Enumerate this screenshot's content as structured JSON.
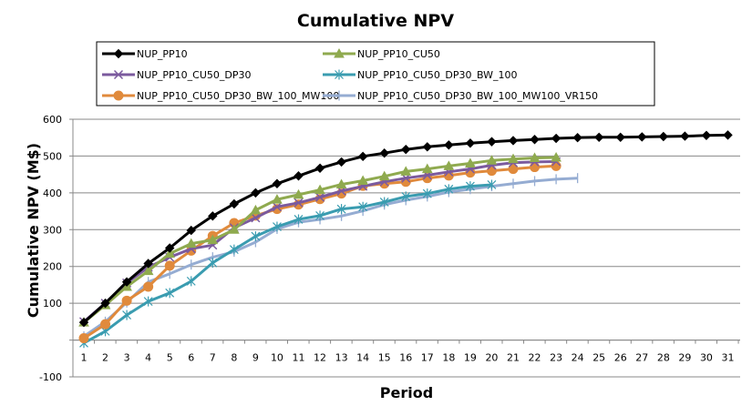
{
  "chart_data": {
    "type": "line",
    "title": "Cumulative NPV",
    "xlabel": "Period",
    "ylabel": "Cumulative NPV (M$)",
    "ylim": [
      -100,
      600
    ],
    "yticks": [
      -100,
      0,
      100,
      200,
      300,
      400,
      500,
      600
    ],
    "ytick_labels": [
      "-100",
      "",
      "100",
      "200",
      "300",
      "400",
      "500",
      "600"
    ],
    "x": [
      1,
      2,
      3,
      4,
      5,
      6,
      7,
      8,
      9,
      10,
      11,
      12,
      13,
      14,
      15,
      16,
      17,
      18,
      19,
      20,
      21,
      22,
      23,
      24,
      25,
      26,
      27,
      28,
      29,
      30,
      31
    ],
    "xtick_labels": [
      "1",
      "2",
      "3",
      "4",
      "5",
      "6",
      "7",
      "8",
      "9",
      "10",
      "11",
      "12",
      "13",
      "14",
      "15",
      "16",
      "17",
      "18",
      "19",
      "20",
      "21",
      "22",
      "23",
      "24",
      "25",
      "26",
      "27",
      "28",
      "29",
      "30",
      "31"
    ],
    "grid": true,
    "legend_position": "top",
    "series": [
      {
        "name": "NUP_PP10",
        "color": "#000000",
        "marker": "diamond",
        "values": [
          48,
          100,
          158,
          208,
          250,
          298,
          337,
          370,
          400,
          425,
          446,
          467,
          484,
          499,
          508,
          518,
          525,
          530,
          535,
          539,
          542,
          545,
          548,
          550,
          551,
          551,
          552,
          553,
          554,
          556,
          557
        ]
      },
      {
        "name": "NUP_PP10_CU50",
        "color": "#8faa4f",
        "marker": "triangle",
        "values": [
          48,
          95,
          145,
          188,
          235,
          262,
          272,
          300,
          353,
          382,
          395,
          408,
          423,
          433,
          445,
          458,
          465,
          473,
          480,
          488,
          492,
          495,
          496
        ]
      },
      {
        "name": "NUP_PP10_CU50_DP30",
        "color": "#7b5a9e",
        "marker": "x",
        "values": [
          50,
          100,
          155,
          198,
          225,
          248,
          258,
          305,
          332,
          362,
          373,
          388,
          405,
          418,
          430,
          440,
          448,
          457,
          465,
          475,
          482,
          484,
          485
        ]
      },
      {
        "name": "NUP_PP10_CU50_DP30_BW_100",
        "color": "#3a9cb0",
        "marker": "star",
        "values": [
          -8,
          24,
          68,
          105,
          128,
          160,
          210,
          246,
          282,
          308,
          328,
          338,
          356,
          362,
          375,
          390,
          398,
          410,
          418,
          422
        ]
      },
      {
        "name": "NUP_PP10_CU50_DP30_BW_100_MW100",
        "color": "#e08a3c",
        "marker": "circle",
        "values": [
          5,
          43,
          107,
          145,
          202,
          243,
          283,
          318,
          338,
          356,
          368,
          383,
          398,
          419,
          425,
          430,
          440,
          447,
          455,
          460,
          465,
          470,
          473
        ]
      },
      {
        "name": "NUP_PP10_CU50_DP30_BW_100_MW100_VR150",
        "color": "#95acd2",
        "marker": "plus",
        "values": [
          10,
          50,
          102,
          158,
          180,
          205,
          225,
          240,
          266,
          302,
          320,
          328,
          337,
          351,
          368,
          380,
          390,
          402,
          410,
          418,
          425,
          432,
          437,
          440
        ]
      }
    ]
  }
}
